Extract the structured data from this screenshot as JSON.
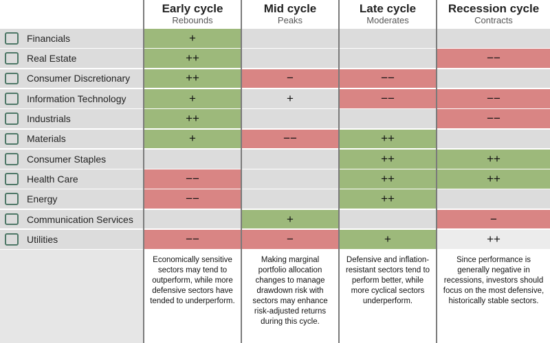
{
  "table": {
    "columns": [
      {
        "title": "Early cycle",
        "subtitle": "Rebounds"
      },
      {
        "title": "Mid cycle",
        "subtitle": "Peaks"
      },
      {
        "title": "Late cycle",
        "subtitle": "Moderates"
      },
      {
        "title": "Recession cycle",
        "subtitle": "Contracts"
      }
    ],
    "rows": [
      {
        "sector": "Financials",
        "cells": [
          "+",
          null,
          null,
          null
        ],
        "colors": [
          "#9db97b",
          "#dcdcdc",
          "#dcdcdc",
          "#dcdcdc"
        ]
      },
      {
        "sector": "Real Estate",
        "cells": [
          "++",
          null,
          null,
          "−−"
        ],
        "colors": [
          "#9db97b",
          "#dcdcdc",
          "#dcdcdc",
          "#d98584"
        ]
      },
      {
        "sector": "Consumer Discretionary",
        "cells": [
          "++",
          "−",
          "−−",
          null
        ],
        "colors": [
          "#9db97b",
          "#d98584",
          "#d98584",
          "#dcdcdc"
        ]
      },
      {
        "sector": "Information Technology",
        "cells": [
          "+",
          "+",
          "−−",
          "−−"
        ],
        "colors": [
          "#9db97b",
          "#dcdcdc",
          "#d98584",
          "#d98584"
        ]
      },
      {
        "sector": "Industrials",
        "cells": [
          "++",
          null,
          null,
          "−−"
        ],
        "colors": [
          "#9db97b",
          "#dcdcdc",
          "#dcdcdc",
          "#d98584"
        ]
      },
      {
        "sector": "Materials",
        "cells": [
          "+",
          "−−",
          "++",
          null
        ],
        "colors": [
          "#9db97b",
          "#d98584",
          "#9db97b",
          "#dcdcdc"
        ]
      },
      {
        "sector": "Consumer Staples",
        "cells": [
          null,
          null,
          "++",
          "++"
        ],
        "colors": [
          "#dcdcdc",
          "#dcdcdc",
          "#9db97b",
          "#9db97b"
        ]
      },
      {
        "sector": "Health Care",
        "cells": [
          "−−",
          null,
          "++",
          "++"
        ],
        "colors": [
          "#d98584",
          "#dcdcdc",
          "#9db97b",
          "#9db97b"
        ]
      },
      {
        "sector": "Energy",
        "cells": [
          "−−",
          null,
          "++",
          null
        ],
        "colors": [
          "#d98584",
          "#dcdcdc",
          "#9db97b",
          "#dcdcdc"
        ]
      },
      {
        "sector": "Communication Services",
        "cells": [
          null,
          "+",
          null,
          "−"
        ],
        "colors": [
          "#dcdcdc",
          "#9db97b",
          "#dcdcdc",
          "#d98584"
        ]
      },
      {
        "sector": "Utilities",
        "cells": [
          "−−",
          "−",
          "+",
          "++"
        ],
        "colors": [
          "#d98584",
          "#d98584",
          "#9db97b",
          "#ececec"
        ]
      }
    ],
    "descriptions": [
      "Economically sensitive sectors may tend to outperform, while more defensive sectors have tended to underperform.",
      "Making marginal portfolio allocation changes to manage drawdown risk with sectors may enhance risk-adjusted returns during this cycle.",
      "Defensive and inflation-resistant sectors tend to perform better, while more cyclical sectors underperform.",
      "Since performance is generally negative in recessions, investors should focus on the most defensive, historically stable sectors."
    ]
  }
}
